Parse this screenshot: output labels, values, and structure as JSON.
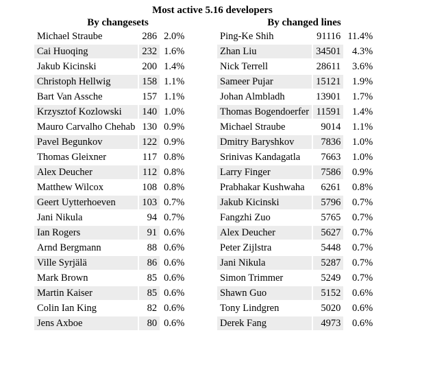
{
  "header": {
    "title": "Most active 5.16 developers",
    "left_heading": "By changesets",
    "right_heading": "By changed lines"
  },
  "by_changesets": [
    {
      "name": "Michael Straube",
      "count": "286",
      "pct": "2.0%"
    },
    {
      "name": "Cai Huoqing",
      "count": "232",
      "pct": "1.6%"
    },
    {
      "name": "Jakub Kicinski",
      "count": "200",
      "pct": "1.4%"
    },
    {
      "name": "Christoph Hellwig",
      "count": "158",
      "pct": "1.1%"
    },
    {
      "name": "Bart Van Assche",
      "count": "157",
      "pct": "1.1%"
    },
    {
      "name": "Krzysztof Kozlowski",
      "count": "140",
      "pct": "1.0%"
    },
    {
      "name": "Mauro Carvalho Chehab",
      "count": "130",
      "pct": "0.9%"
    },
    {
      "name": "Pavel Begunkov",
      "count": "122",
      "pct": "0.9%"
    },
    {
      "name": "Thomas Gleixner",
      "count": "117",
      "pct": "0.8%"
    },
    {
      "name": "Alex Deucher",
      "count": "112",
      "pct": "0.8%"
    },
    {
      "name": "Matthew Wilcox",
      "count": "108",
      "pct": "0.8%"
    },
    {
      "name": "Geert Uytterhoeven",
      "count": "103",
      "pct": "0.7%"
    },
    {
      "name": "Jani Nikula",
      "count": "94",
      "pct": "0.7%"
    },
    {
      "name": "Ian Rogers",
      "count": "91",
      "pct": "0.6%"
    },
    {
      "name": "Arnd Bergmann",
      "count": "88",
      "pct": "0.6%"
    },
    {
      "name": "Ville Syrjälä",
      "count": "86",
      "pct": "0.6%"
    },
    {
      "name": "Mark Brown",
      "count": "85",
      "pct": "0.6%"
    },
    {
      "name": "Martin Kaiser",
      "count": "85",
      "pct": "0.6%"
    },
    {
      "name": "Colin Ian King",
      "count": "82",
      "pct": "0.6%"
    },
    {
      "name": "Jens Axboe",
      "count": "80",
      "pct": "0.6%"
    }
  ],
  "by_changed_lines": [
    {
      "name": "Ping-Ke Shih",
      "count": "91116",
      "pct": "11.4%"
    },
    {
      "name": "Zhan Liu",
      "count": "34501",
      "pct": "4.3%"
    },
    {
      "name": "Nick Terrell",
      "count": "28611",
      "pct": "3.6%"
    },
    {
      "name": "Sameer Pujar",
      "count": "15121",
      "pct": "1.9%"
    },
    {
      "name": "Johan Almbladh",
      "count": "13901",
      "pct": "1.7%"
    },
    {
      "name": "Thomas Bogendoerfer",
      "count": "11591",
      "pct": "1.4%"
    },
    {
      "name": "Michael Straube",
      "count": "9014",
      "pct": "1.1%"
    },
    {
      "name": "Dmitry Baryshkov",
      "count": "7836",
      "pct": "1.0%"
    },
    {
      "name": "Srinivas Kandagatla",
      "count": "7663",
      "pct": "1.0%"
    },
    {
      "name": "Larry Finger",
      "count": "7586",
      "pct": "0.9%"
    },
    {
      "name": "Prabhakar Kushwaha",
      "count": "6261",
      "pct": "0.8%"
    },
    {
      "name": "Jakub Kicinski",
      "count": "5796",
      "pct": "0.7%"
    },
    {
      "name": "Fangzhi Zuo",
      "count": "5765",
      "pct": "0.7%"
    },
    {
      "name": "Alex Deucher",
      "count": "5627",
      "pct": "0.7%"
    },
    {
      "name": "Peter Zijlstra",
      "count": "5448",
      "pct": "0.7%"
    },
    {
      "name": "Jani Nikula",
      "count": "5287",
      "pct": "0.7%"
    },
    {
      "name": "Simon Trimmer",
      "count": "5249",
      "pct": "0.7%"
    },
    {
      "name": "Shawn Guo",
      "count": "5152",
      "pct": "0.6%"
    },
    {
      "name": "Tony Lindgren",
      "count": "5020",
      "pct": "0.6%"
    },
    {
      "name": "Derek Fang",
      "count": "4973",
      "pct": "0.6%"
    }
  ]
}
